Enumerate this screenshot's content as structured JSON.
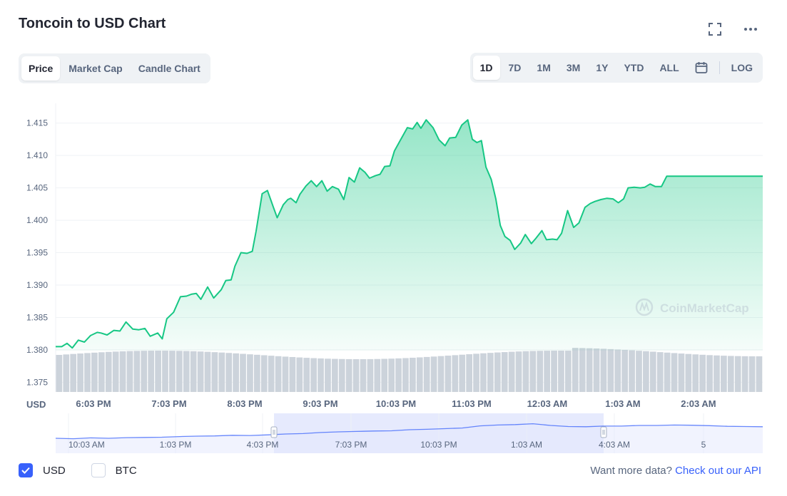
{
  "header": {
    "title": "Toncoin to USD Chart",
    "expand_icon": "expand-icon",
    "more_icon": "more-icon"
  },
  "tabs_left": [
    "Price",
    "Market Cap",
    "Candle Chart"
  ],
  "tabs_left_active": 0,
  "ranges": [
    "1D",
    "7D",
    "1M",
    "3M",
    "1Y",
    "YTD",
    "ALL"
  ],
  "ranges_active": 0,
  "calendar_icon": "calendar-icon",
  "log_label": "LOG",
  "watermark": "CoinMarketCap",
  "footer": {
    "usd_label": "USD",
    "btc_label": "BTC",
    "usd_checked": true,
    "btc_checked": false,
    "more_data": "Want more data?",
    "api_link": "Check out our API"
  },
  "colors": {
    "line": "#16c784",
    "volume": "#ccd3db",
    "accent": "#3861fb",
    "navigator_line": "#3861fb",
    "navigator_sel": "#e3e8fd"
  },
  "chart_data": {
    "type": "line",
    "ylabel": "USD",
    "ylim": [
      1.3735,
      1.4175
    ],
    "y_ticks": [
      "1.415",
      "1.410",
      "1.405",
      "1.400",
      "1.395",
      "1.390",
      "1.385",
      "1.380",
      "1.375"
    ],
    "x_ticks": [
      "6:03 PM",
      "7:03 PM",
      "8:03 PM",
      "9:03 PM",
      "10:03 PM",
      "11:03 PM",
      "12:03 AM",
      "1:03 AM",
      "2:03 AM"
    ],
    "x_tick_hours": [
      18.05,
      19.05,
      20.05,
      21.05,
      22.05,
      23.05,
      24.05,
      25.05,
      26.05
    ],
    "xlim_hours": [
      17.55,
      26.9
    ],
    "series": [
      {
        "x_hours": [
          17.55,
          17.63,
          17.7,
          17.77,
          17.85,
          17.93,
          18.01,
          18.1,
          18.15,
          18.23,
          18.32,
          18.4,
          18.48,
          18.57,
          18.65,
          18.73,
          18.8,
          18.9,
          18.96,
          19.02,
          19.11,
          19.2,
          19.28,
          19.35,
          19.41,
          19.47,
          19.56,
          19.64,
          19.74,
          19.8,
          19.87,
          19.92,
          20.0,
          20.08,
          20.15,
          20.2,
          20.28,
          20.35,
          20.43,
          20.48,
          20.56,
          20.62,
          20.66,
          20.73,
          20.78,
          20.86,
          20.93,
          21.0,
          21.07,
          21.14,
          21.21,
          21.29,
          21.36,
          21.43,
          21.5,
          21.57,
          21.64,
          21.7,
          21.78,
          21.84,
          21.9,
          21.97,
          22.03,
          22.11,
          22.2,
          22.27,
          22.33,
          22.38,
          22.45,
          22.54,
          22.62,
          22.7,
          22.76,
          22.84,
          22.92,
          23.0,
          23.06,
          23.12,
          23.18,
          23.24,
          23.31,
          23.37,
          23.43,
          23.49,
          23.56,
          23.62,
          23.7,
          23.76,
          23.84,
          23.9,
          23.98,
          24.04,
          24.12,
          24.18,
          24.24,
          24.32,
          24.4,
          24.47,
          24.55,
          24.62,
          24.68,
          24.76,
          24.84,
          24.92,
          24.99,
          25.06,
          25.12,
          25.2,
          25.28,
          25.34,
          25.41,
          25.48,
          25.56,
          25.63,
          25.68,
          25.77,
          25.84,
          25.91,
          26.0,
          26.05,
          26.11,
          26.16,
          26.22,
          26.29,
          26.37,
          26.44,
          26.52,
          26.61,
          26.69,
          26.76,
          26.9
        ],
        "values": [
          1.3805,
          1.3805,
          1.381,
          1.3803,
          1.3815,
          1.3812,
          1.3822,
          1.3827,
          1.3826,
          1.3823,
          1.383,
          1.3829,
          1.3843,
          1.3832,
          1.3831,
          1.3833,
          1.3821,
          1.3826,
          1.3817,
          1.3848,
          1.3858,
          1.3882,
          1.3883,
          1.3886,
          1.3887,
          1.3878,
          1.3897,
          1.388,
          1.3893,
          1.3907,
          1.3908,
          1.3929,
          1.395,
          1.3949,
          1.3952,
          1.3983,
          1.4041,
          1.4046,
          1.402,
          1.4004,
          1.4024,
          1.4032,
          1.4034,
          1.4027,
          1.404,
          1.4053,
          1.4061,
          1.4052,
          1.4061,
          1.4045,
          1.4052,
          1.4048,
          1.4032,
          1.4066,
          1.4059,
          1.4081,
          1.4074,
          1.4065,
          1.4069,
          1.4071,
          1.4083,
          1.4084,
          1.4107,
          1.4124,
          1.4143,
          1.4141,
          1.4151,
          1.4142,
          1.4155,
          1.4143,
          1.4124,
          1.4115,
          1.4127,
          1.4128,
          1.4147,
          1.4155,
          1.4125,
          1.412,
          1.4123,
          1.4082,
          1.4063,
          1.4033,
          1.3992,
          1.3975,
          1.3969,
          1.3955,
          1.3965,
          1.3978,
          1.3964,
          1.3972,
          1.3984,
          1.397,
          1.3971,
          1.397,
          1.398,
          1.4015,
          1.3989,
          1.3996,
          1.402,
          1.4026,
          1.4029,
          1.4032,
          1.4034,
          1.4033,
          1.4027,
          1.4033,
          1.405,
          1.4051,
          1.405,
          1.4051,
          1.4056,
          1.4052,
          1.4052,
          1.4068,
          1.4068,
          1.4068,
          1.4068,
          1.4068,
          1.4068,
          1.4068,
          1.4068,
          1.4068,
          1.4068,
          1.4068,
          1.4068,
          1.4068,
          1.4068,
          1.4068,
          1.4068,
          1.4068,
          1.4068
        ]
      }
    ],
    "navigator": {
      "x_labels": [
        "10:03 AM",
        "1:03 PM",
        "4:03 PM",
        "7:03 PM",
        "10:03 PM",
        "1:03 AM",
        "4:03 AM",
        "5"
      ]
    }
  }
}
